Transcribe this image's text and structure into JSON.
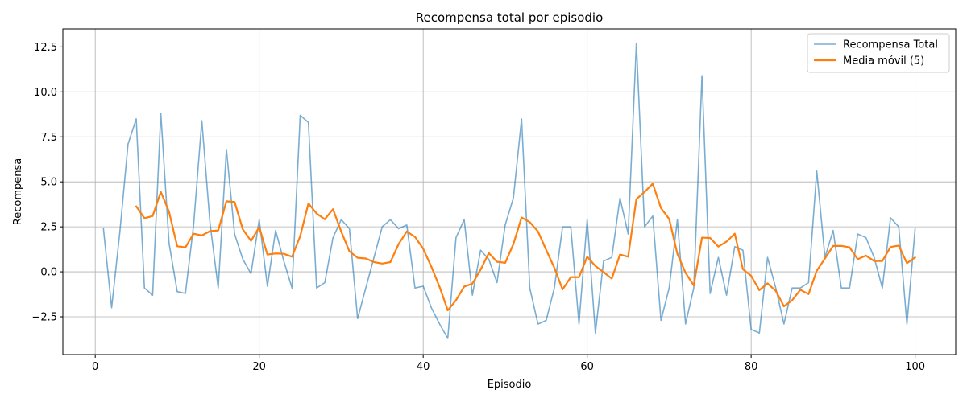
{
  "chart_data": {
    "type": "line",
    "title": "Recompensa total por episodio",
    "xlabel": "Episodio",
    "ylabel": "Recompensa",
    "xlim": [
      -3.95,
      104.95
    ],
    "ylim": [
      -4.6,
      13.5
    ],
    "xticks": [
      0,
      20,
      40,
      60,
      80,
      100
    ],
    "yticks": [
      -2.5,
      0.0,
      2.5,
      5.0,
      7.5,
      10.0,
      12.5
    ],
    "ytick_labels": [
      "−2.5",
      "0.0",
      "2.5",
      "5.0",
      "7.5",
      "10.0",
      "12.5"
    ],
    "grid": true,
    "legend_position": "top-right",
    "series": [
      {
        "name": "Recompensa Total",
        "color": "#1f77b4",
        "x_start": 1,
        "values": [
          2.4,
          -2.0,
          2.2,
          7.1,
          8.5,
          -0.9,
          -1.3,
          8.8,
          1.6,
          -1.1,
          -1.2,
          2.6,
          8.4,
          2.7,
          -0.9,
          6.8,
          2.1,
          0.7,
          -0.1,
          2.9,
          -0.8,
          2.3,
          0.6,
          -0.9,
          8.7,
          8.3,
          -0.9,
          -0.6,
          1.9,
          2.9,
          2.4,
          -2.6,
          -0.9,
          0.8,
          2.5,
          2.9,
          2.4,
          2.6,
          -0.9,
          -0.8,
          -2.0,
          -2.9,
          -3.7,
          1.9,
          2.9,
          -1.3,
          1.2,
          0.7,
          -0.6,
          2.6,
          4.1,
          8.5,
          -0.9,
          -2.9,
          -2.7,
          -0.9,
          2.5,
          2.5,
          -2.9,
          2.9,
          -3.4,
          0.6,
          0.8,
          4.1,
          2.1,
          12.7,
          2.5,
          3.1,
          -2.7,
          -0.9,
          2.9,
          -2.9,
          -0.9,
          10.9,
          -1.2,
          0.8,
          -1.3,
          1.4,
          1.2,
          -3.2,
          -3.4,
          0.8,
          -0.9,
          -2.9,
          -0.9,
          -0.9,
          -0.6,
          5.6,
          0.8,
          2.3,
          -0.9,
          -0.9,
          2.1,
          1.9,
          0.8,
          -0.9,
          3.0,
          2.5,
          -2.9,
          2.4
        ]
      },
      {
        "name": "Media móvil (5)",
        "color": "#ff7f0e",
        "x_start": 5,
        "values": [
          3.64,
          2.98,
          3.1,
          4.44,
          3.34,
          1.42,
          1.36,
          2.12,
          2.02,
          2.26,
          2.3,
          3.92,
          3.88,
          2.36,
          1.72,
          2.48,
          0.96,
          1.02,
          1.0,
          0.84,
          1.98,
          3.8,
          3.24,
          2.92,
          3.48,
          2.24,
          1.14,
          0.78,
          0.74,
          0.54,
          0.46,
          0.54,
          1.54,
          2.24,
          1.94,
          1.28,
          0.28,
          -0.84,
          -2.14,
          -1.58,
          -0.82,
          -0.66,
          0.12,
          1.04,
          0.56,
          0.5,
          1.54,
          3.02,
          2.76,
          2.24,
          1.22,
          0.22,
          -0.98,
          -0.3,
          -0.3,
          0.84,
          0.32,
          -0.02,
          -0.38,
          0.96,
          0.84,
          4.04,
          4.44,
          4.9,
          3.54,
          2.94,
          1.0,
          -0.06,
          -0.76,
          1.9,
          1.88,
          1.4,
          1.68,
          2.12,
          0.14,
          -0.22,
          -1.02,
          -0.64,
          -1.06,
          -1.92,
          -1.58,
          -1.0,
          -1.24,
          0.06,
          0.74,
          1.44,
          1.44,
          1.36,
          0.7,
          0.9,
          0.6,
          0.6,
          1.38,
          1.46,
          0.48,
          0.8
        ]
      }
    ]
  }
}
